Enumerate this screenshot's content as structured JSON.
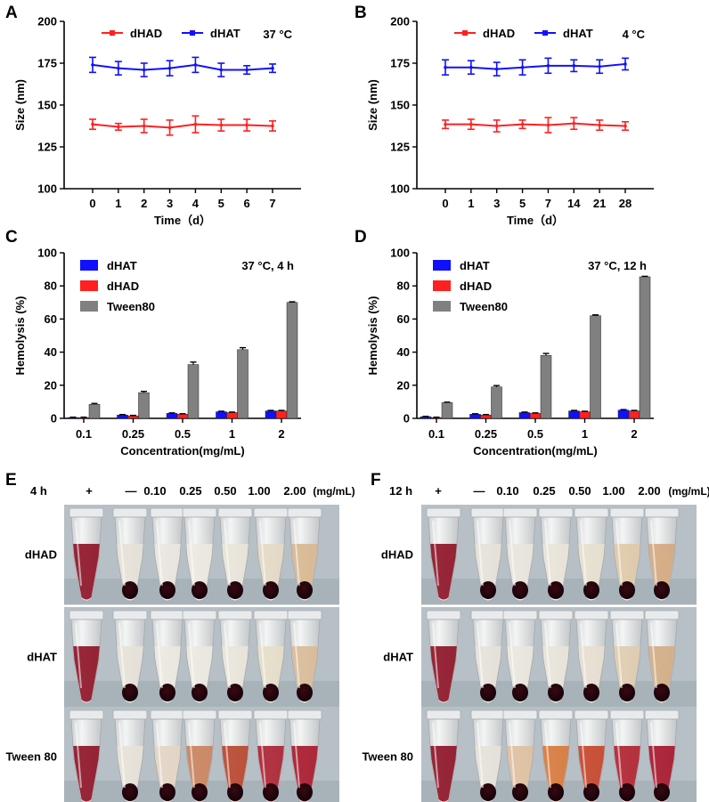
{
  "panel_letters": {
    "A": "A",
    "B": "B",
    "C": "C",
    "D": "D",
    "E": "E",
    "F": "F"
  },
  "colors": {
    "dHAD": "#ff2020",
    "dHAT": "#1010ff",
    "Tween80": "#808080",
    "axis": "#000000"
  },
  "chart_data": [
    {
      "id": "A",
      "type": "line",
      "title": "",
      "annotation": "37 °C",
      "xlabel": "Time（d）",
      "ylabel": "Size (nm)",
      "categories": [
        "0",
        "1",
        "2",
        "3",
        "4",
        "5",
        "6",
        "7"
      ],
      "ylim": [
        100,
        200
      ],
      "yticks": [
        100,
        125,
        150,
        175,
        200
      ],
      "series": [
        {
          "name": "dHAD",
          "color": "#ff2020",
          "values": [
            138.5,
            137,
            137.5,
            136.5,
            138.5,
            138,
            138,
            137.5
          ],
          "errors": [
            3,
            2,
            4,
            4.5,
            5,
            3.5,
            3.5,
            3
          ]
        },
        {
          "name": "dHAT",
          "color": "#1010ff",
          "values": [
            174,
            172,
            171,
            172,
            174,
            171,
            171,
            172
          ],
          "errors": [
            4.5,
            4,
            4,
            4.5,
            4.5,
            4,
            2.5,
            2.5
          ]
        }
      ],
      "legend_position": "top"
    },
    {
      "id": "B",
      "type": "line",
      "title": "",
      "annotation": "4 °C",
      "xlabel": "Time（d）",
      "ylabel": "Size (nm)",
      "categories": [
        "0",
        "1",
        "3",
        "5",
        "7",
        "14",
        "21",
        "28"
      ],
      "ylim": [
        100,
        200
      ],
      "yticks": [
        100,
        125,
        150,
        175,
        200
      ],
      "series": [
        {
          "name": "dHAD",
          "color": "#ff2020",
          "values": [
            138.5,
            138.5,
            137.5,
            138.5,
            138,
            139,
            138,
            137.5
          ],
          "errors": [
            2.5,
            3,
            3.5,
            2.5,
            4.5,
            3.5,
            3,
            2.5
          ]
        },
        {
          "name": "dHAT",
          "color": "#1010ff",
          "values": [
            172.5,
            172.5,
            171.5,
            172.5,
            173.5,
            173.5,
            173,
            174.5
          ],
          "errors": [
            4.5,
            4,
            4,
            4.5,
            4.5,
            3.5,
            4,
            3.5
          ]
        }
      ],
      "legend_position": "top"
    },
    {
      "id": "C",
      "type": "bar",
      "title": "",
      "annotation": "37 °C, 4 h",
      "xlabel": "Concentration(mg/mL)",
      "ylabel": "Hemolysis (%)",
      "categories": [
        "0.1",
        "0.25",
        "0.5",
        "1",
        "2"
      ],
      "ylim": [
        0,
        100
      ],
      "yticks": [
        0,
        20,
        40,
        60,
        80,
        100
      ],
      "series": [
        {
          "name": "dHAT",
          "color": "#1010ff",
          "values": [
            0.5,
            2,
            3,
            4,
            4.5
          ],
          "errors": [
            0.2,
            0.3,
            0.3,
            0.3,
            0.3
          ]
        },
        {
          "name": "dHAD",
          "color": "#ff2020",
          "values": [
            0.5,
            1.5,
            2.5,
            3.5,
            4.5
          ],
          "errors": [
            0.2,
            0.3,
            0.3,
            0.3,
            0.3
          ]
        },
        {
          "name": "Tween80",
          "color": "#808080",
          "values": [
            8.5,
            15.5,
            32.5,
            41.5,
            70
          ],
          "errors": [
            0.5,
            0.8,
            1.5,
            1.2,
            0.4
          ]
        }
      ],
      "legend_position": "top-left"
    },
    {
      "id": "D",
      "type": "bar",
      "title": "",
      "annotation": "37 °C, 12 h",
      "xlabel": "Concentration(mg/mL)",
      "ylabel": "Hemolysis (%)",
      "categories": [
        "0.1",
        "0.25",
        "0.5",
        "1",
        "2"
      ],
      "ylim": [
        0,
        100
      ],
      "yticks": [
        0,
        20,
        40,
        60,
        80,
        100
      ],
      "series": [
        {
          "name": "dHAT",
          "color": "#1010ff",
          "values": [
            1,
            2.5,
            3.5,
            4.5,
            5
          ],
          "errors": [
            0.2,
            0.3,
            0.3,
            0.3,
            0.3
          ]
        },
        {
          "name": "dHAD",
          "color": "#ff2020",
          "values": [
            0.5,
            2,
            3,
            4,
            4.5
          ],
          "errors": [
            0.2,
            0.3,
            0.3,
            0.3,
            0.3
          ]
        },
        {
          "name": "Tween80",
          "color": "#808080",
          "values": [
            9.5,
            19,
            38,
            62,
            85.5
          ],
          "errors": [
            0.3,
            0.8,
            1.2,
            0.5,
            0.3
          ]
        }
      ],
      "legend_position": "top-left"
    }
  ],
  "photos": [
    {
      "id": "E",
      "time_label": "4 h",
      "column_labels": [
        "+",
        "—",
        "0.10",
        "0.25",
        "0.50",
        "1.00",
        "2.00",
        "(mg/mL)"
      ],
      "row_labels": [
        "dHAD",
        "dHAT",
        "Tween 80"
      ],
      "supernatant": [
        [
          "#8e1528",
          "#e6e2d8",
          "#e9e6de",
          "#ebe8e0",
          "#e8e4d8",
          "#e4d9c4",
          "#d8b791"
        ],
        [
          "#8e1528",
          "#e6e2d8",
          "#ebe8e0",
          "#ebe8e0",
          "#e9e5da",
          "#e5ddc9",
          "#d9bb98"
        ],
        [
          "#8e1528",
          "#e6e2d8",
          "#e4d5c4",
          "#c9835e",
          "#b9462f",
          "#ad2433",
          "#a81a2e"
        ]
      ]
    },
    {
      "id": "F",
      "time_label": "12 h",
      "column_labels": [
        "+",
        "—",
        "0.10",
        "0.25",
        "0.50",
        "1.00",
        "2.00",
        "(mg/mL)"
      ],
      "row_labels": [
        "dHAD",
        "dHAT",
        "Tween 80"
      ],
      "supernatant": [
        [
          "#8e1528",
          "#e6e2d8",
          "#e8e5dc",
          "#e8e4d9",
          "#e6dfcf",
          "#dfc9a8",
          "#d4a980"
        ],
        [
          "#8e1528",
          "#e6e2d8",
          "#e9e6dd",
          "#e8e4d9",
          "#e6ded0",
          "#e0ccaf",
          "#d3ad86"
        ],
        [
          "#8e1528",
          "#e6e2d8",
          "#e0bfa0",
          "#d77a3d",
          "#c5452a",
          "#b12431",
          "#a6182d"
        ]
      ]
    }
  ]
}
